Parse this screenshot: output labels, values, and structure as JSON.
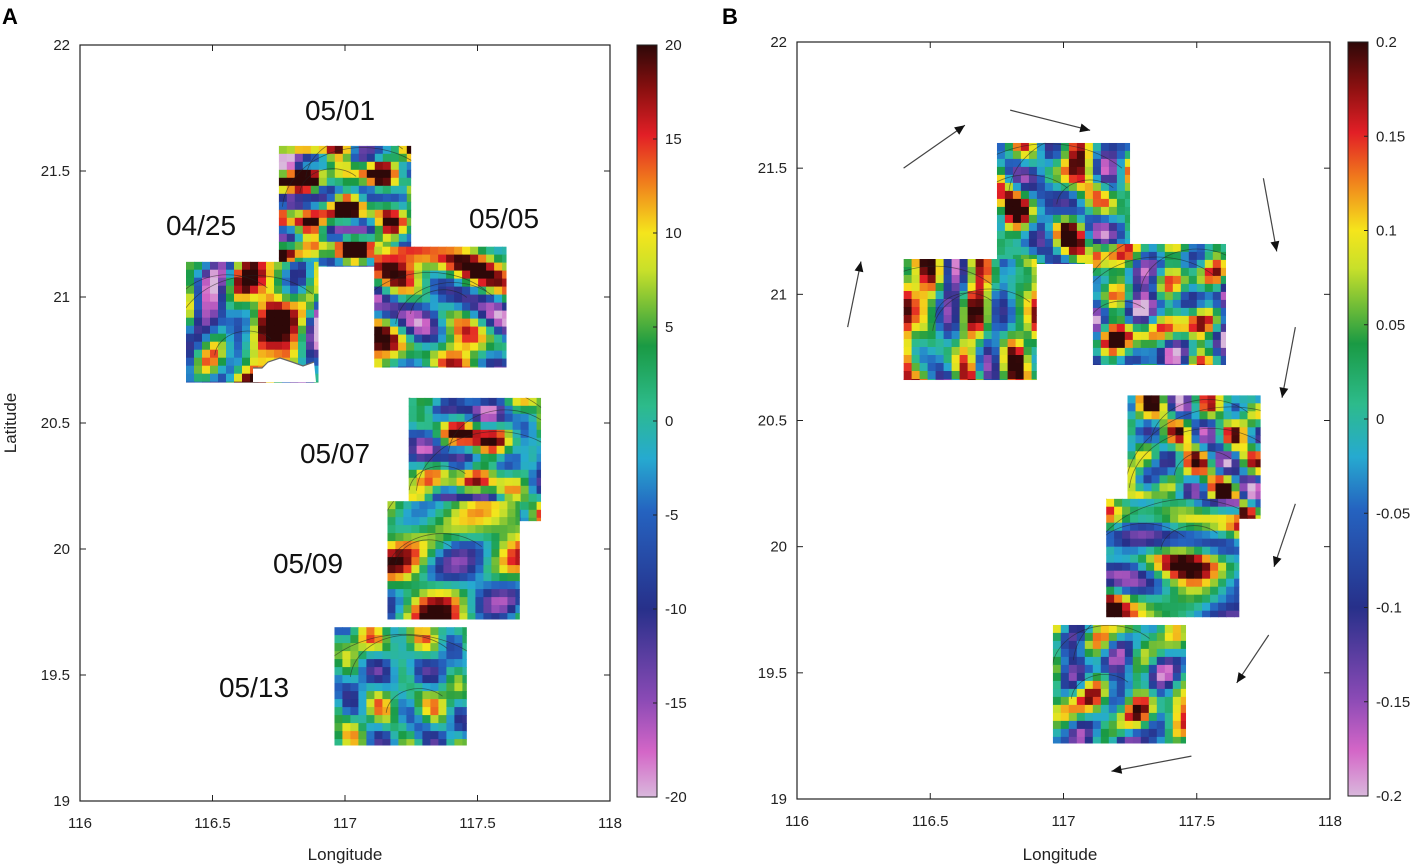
{
  "chart_data": [
    {
      "panel": "A",
      "type": "heatmap",
      "xlabel": "Longitude",
      "ylabel": "Latitude",
      "xlim": [
        116,
        118
      ],
      "ylim": [
        19,
        22
      ],
      "xticks": [
        "116",
        "116.5",
        "117",
        "117.5",
        "118"
      ],
      "yticks": [
        "19",
        "19.5",
        "20",
        "20.5",
        "21",
        "21.5",
        "22"
      ],
      "colorbar": {
        "range": [
          -20,
          20
        ],
        "ticks": [
          "20",
          "15",
          "10",
          "5",
          "0",
          "-5",
          "-10",
          "-15",
          "-20"
        ]
      },
      "patches": [
        {
          "label": "05/01",
          "lon": [
            116.75,
            117.25
          ],
          "lat": [
            21.12,
            21.6
          ],
          "mean": 6,
          "amp": 22,
          "seed": 3
        },
        {
          "label": "04/25",
          "lon": [
            116.4,
            116.9
          ],
          "lat": [
            20.66,
            21.14
          ],
          "mean": 4,
          "amp": 24,
          "seed": 7
        },
        {
          "label": "05/05",
          "lon": [
            117.11,
            117.61
          ],
          "lat": [
            20.72,
            21.2
          ],
          "mean": 2,
          "amp": 22,
          "seed": 11
        },
        {
          "label": "05/07",
          "lon": [
            117.24,
            117.74
          ],
          "lat": [
            20.11,
            20.6
          ],
          "mean": 1,
          "amp": 18,
          "seed": 13
        },
        {
          "label": "05/09",
          "lon": [
            117.16,
            117.66
          ],
          "lat": [
            19.72,
            20.19
          ],
          "mean": 3,
          "amp": 18,
          "seed": 17
        },
        {
          "label": "05/13",
          "lon": [
            116.96,
            117.46
          ],
          "lat": [
            19.22,
            19.69
          ],
          "mean": 0,
          "amp": 12,
          "seed": 19
        }
      ]
    },
    {
      "panel": "B",
      "type": "heatmap",
      "xlabel": "Longitude",
      "ylabel": "",
      "xlim": [
        116,
        118
      ],
      "ylim": [
        19,
        22
      ],
      "xticks": [
        "116",
        "116.5",
        "117",
        "117.5",
        "118"
      ],
      "yticks": [
        "19",
        "19.5",
        "20",
        "20.5",
        "21",
        "21.5",
        "22"
      ],
      "colorbar": {
        "range": [
          -0.2,
          0.2
        ],
        "ticks": [
          "0.2",
          "0.15",
          "0.1",
          "0.05",
          "0",
          "-0.05",
          "-0.1",
          "-0.15",
          "-0.2"
        ]
      },
      "patches": [
        {
          "lon": [
            116.75,
            117.25
          ],
          "lat": [
            21.12,
            21.6
          ],
          "mean": 0.02,
          "amp": 0.2,
          "seed": 23
        },
        {
          "lon": [
            116.4,
            116.9
          ],
          "lat": [
            20.66,
            21.14
          ],
          "mean": 0.04,
          "amp": 0.24,
          "seed": 29
        },
        {
          "lon": [
            117.11,
            117.61
          ],
          "lat": [
            20.72,
            21.2
          ],
          "mean": 0.0,
          "amp": 0.2,
          "seed": 31
        },
        {
          "lon": [
            117.24,
            117.74
          ],
          "lat": [
            20.11,
            20.6
          ],
          "mean": 0.02,
          "amp": 0.22,
          "seed": 37
        },
        {
          "lon": [
            117.16,
            117.66
          ],
          "lat": [
            19.72,
            20.19
          ],
          "mean": 0.02,
          "amp": 0.2,
          "seed": 41
        },
        {
          "lon": [
            116.96,
            117.46
          ],
          "lat": [
            19.22,
            19.69
          ],
          "mean": 0.0,
          "amp": 0.16,
          "seed": 43
        }
      ],
      "arrows": [
        {
          "from": [
            116.19,
            20.87
          ],
          "to": [
            116.24,
            21.13
          ]
        },
        {
          "from": [
            116.4,
            21.5
          ],
          "to": [
            116.63,
            21.67
          ]
        },
        {
          "from": [
            116.8,
            21.73
          ],
          "to": [
            117.1,
            21.65
          ]
        },
        {
          "from": [
            117.75,
            21.46
          ],
          "to": [
            117.8,
            21.17
          ]
        },
        {
          "from": [
            117.87,
            20.87
          ],
          "to": [
            117.82,
            20.59
          ]
        },
        {
          "from": [
            117.87,
            20.17
          ],
          "to": [
            117.79,
            19.92
          ]
        },
        {
          "from": [
            117.77,
            19.65
          ],
          "to": [
            117.65,
            19.46
          ]
        },
        {
          "from": [
            117.48,
            19.17
          ],
          "to": [
            117.18,
            19.11
          ]
        }
      ]
    }
  ]
}
